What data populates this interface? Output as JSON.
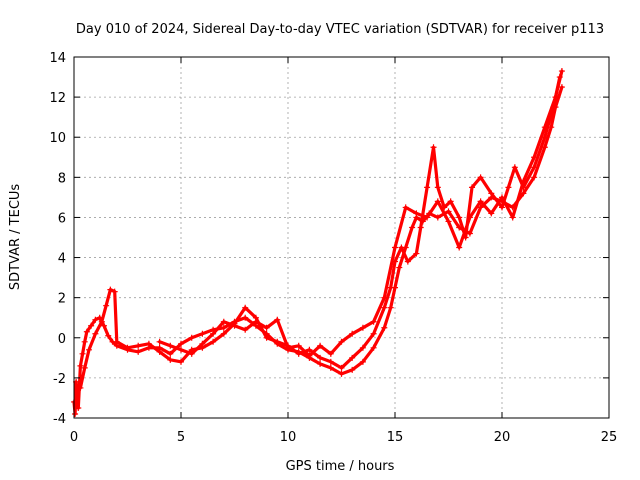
{
  "chart_data": {
    "type": "scatter",
    "title": "Day 010 of 2024, Sidereal Day-to-day VTEC variation (SDTVAR) for receiver p113",
    "xlabel": "GPS time / hours",
    "ylabel": "SDTVAR / TECUs",
    "xlim": [
      0,
      25
    ],
    "ylim": [
      -4,
      14
    ],
    "xticks": [
      "0",
      "5",
      "10",
      "15",
      "20",
      "25"
    ],
    "yticks": [
      "-4",
      "-2",
      "0",
      "2",
      "4",
      "6",
      "8",
      "10",
      "12",
      "14"
    ],
    "grid": true,
    "marker": "+",
    "color": "#ff0000",
    "series": [
      {
        "values": [
          [
            0.0,
            -3.2
          ],
          [
            0.05,
            -3.8
          ],
          [
            0.1,
            -2.2
          ],
          [
            0.2,
            -3.5
          ],
          [
            0.3,
            -1.4
          ],
          [
            0.4,
            -0.8
          ],
          [
            0.5,
            -0.2
          ],
          [
            0.6,
            0.3
          ],
          [
            0.8,
            0.6
          ],
          [
            1.0,
            0.9
          ],
          [
            1.2,
            1.0
          ],
          [
            1.4,
            0.6
          ],
          [
            1.6,
            0.1
          ],
          [
            1.8,
            -0.2
          ],
          [
            2.0,
            -0.4
          ],
          [
            2.5,
            -0.6
          ],
          [
            3.0,
            -0.7
          ],
          [
            3.5,
            -0.5
          ],
          [
            4.0,
            -0.5
          ],
          [
            4.5,
            -0.8
          ],
          [
            5.0,
            -0.3
          ],
          [
            5.5,
            0.0
          ],
          [
            6.0,
            0.2
          ],
          [
            6.5,
            0.4
          ],
          [
            7.0,
            0.5
          ],
          [
            7.5,
            0.8
          ],
          [
            8.0,
            1.0
          ],
          [
            8.5,
            0.6
          ],
          [
            9.0,
            0.2
          ],
          [
            9.5,
            -0.3
          ],
          [
            10.0,
            -0.6
          ],
          [
            10.5,
            -0.7
          ],
          [
            11.0,
            -1.0
          ],
          [
            11.5,
            -1.3
          ],
          [
            12.0,
            -1.5
          ],
          [
            12.5,
            -1.8
          ],
          [
            13.0,
            -1.6
          ],
          [
            13.5,
            -1.2
          ],
          [
            14.0,
            -0.5
          ],
          [
            14.5,
            0.5
          ],
          [
            14.8,
            1.5
          ],
          [
            15.0,
            2.5
          ],
          [
            15.2,
            3.5
          ],
          [
            15.5,
            4.5
          ],
          [
            15.8,
            5.5
          ],
          [
            16.0,
            6.0
          ],
          [
            16.3,
            5.8
          ],
          [
            16.6,
            6.2
          ],
          [
            17.0,
            6.0
          ],
          [
            17.5,
            6.3
          ],
          [
            18.0,
            5.5
          ],
          [
            18.5,
            5.2
          ],
          [
            19.0,
            6.5
          ],
          [
            19.5,
            7.0
          ],
          [
            20.0,
            6.8
          ],
          [
            20.5,
            6.5
          ],
          [
            21.0,
            7.2
          ],
          [
            21.5,
            8.0
          ],
          [
            22.0,
            9.5
          ],
          [
            22.3,
            10.5
          ],
          [
            22.5,
            11.5
          ],
          [
            22.8,
            12.5
          ]
        ]
      },
      {
        "values": [
          [
            0.3,
            -2.5
          ],
          [
            0.5,
            -1.5
          ],
          [
            0.7,
            -0.6
          ],
          [
            1.0,
            0.2
          ],
          [
            1.3,
            0.8
          ],
          [
            1.5,
            1.6
          ],
          [
            1.7,
            2.4
          ],
          [
            1.9,
            2.3
          ],
          [
            2.0,
            -0.2
          ],
          [
            2.5,
            -0.5
          ],
          [
            3.0,
            -0.4
          ],
          [
            3.5,
            -0.3
          ],
          [
            4.0,
            -0.7
          ],
          [
            4.5,
            -1.1
          ],
          [
            5.0,
            -1.2
          ],
          [
            5.5,
            -0.6
          ],
          [
            6.0,
            -0.5
          ],
          [
            6.5,
            -0.2
          ],
          [
            7.0,
            0.2
          ],
          [
            7.5,
            0.7
          ],
          [
            8.0,
            1.5
          ],
          [
            8.5,
            1.0
          ],
          [
            9.0,
            0.0
          ],
          [
            9.5,
            -0.2
          ],
          [
            10.0,
            -0.4
          ],
          [
            10.5,
            -0.8
          ],
          [
            11.0,
            -0.6
          ],
          [
            11.5,
            -1.0
          ],
          [
            12.0,
            -1.2
          ],
          [
            12.5,
            -1.5
          ],
          [
            13.0,
            -1.0
          ],
          [
            13.5,
            -0.5
          ],
          [
            14.0,
            0.2
          ],
          [
            14.5,
            1.5
          ],
          [
            14.8,
            2.5
          ],
          [
            15.0,
            3.8
          ],
          [
            15.3,
            4.5
          ],
          [
            15.6,
            3.8
          ],
          [
            16.0,
            4.2
          ],
          [
            16.2,
            5.5
          ],
          [
            16.5,
            7.5
          ],
          [
            16.8,
            9.5
          ],
          [
            17.0,
            7.5
          ],
          [
            17.3,
            6.5
          ],
          [
            17.6,
            6.8
          ],
          [
            18.0,
            6.0
          ],
          [
            18.3,
            5.0
          ],
          [
            18.6,
            7.5
          ],
          [
            19.0,
            8.0
          ],
          [
            19.5,
            7.2
          ],
          [
            20.0,
            6.5
          ],
          [
            20.3,
            7.5
          ],
          [
            20.6,
            8.5
          ],
          [
            21.0,
            7.5
          ],
          [
            21.5,
            8.5
          ],
          [
            22.0,
            10.0
          ],
          [
            22.4,
            11.5
          ],
          [
            22.7,
            13.0
          ]
        ]
      },
      {
        "values": [
          [
            4.0,
            -0.2
          ],
          [
            4.5,
            -0.4
          ],
          [
            5.0,
            -0.6
          ],
          [
            5.5,
            -0.8
          ],
          [
            6.0,
            -0.3
          ],
          [
            6.5,
            0.2
          ],
          [
            7.0,
            0.8
          ],
          [
            7.5,
            0.6
          ],
          [
            8.0,
            0.4
          ],
          [
            8.5,
            0.8
          ],
          [
            9.0,
            0.5
          ],
          [
            9.5,
            0.9
          ],
          [
            10.0,
            -0.5
          ],
          [
            10.5,
            -0.4
          ],
          [
            11.0,
            -0.9
          ],
          [
            11.5,
            -0.4
          ],
          [
            12.0,
            -0.8
          ],
          [
            12.5,
            -0.2
          ],
          [
            13.0,
            0.2
          ],
          [
            13.5,
            0.5
          ],
          [
            14.0,
            0.8
          ],
          [
            14.5,
            2.0
          ],
          [
            15.0,
            4.5
          ],
          [
            15.5,
            6.5
          ],
          [
            16.0,
            6.2
          ],
          [
            16.5,
            6.0
          ],
          [
            17.0,
            6.8
          ],
          [
            17.5,
            5.8
          ],
          [
            18.0,
            4.5
          ],
          [
            18.5,
            6.0
          ],
          [
            19.0,
            6.8
          ],
          [
            19.5,
            6.2
          ],
          [
            20.0,
            7.0
          ],
          [
            20.5,
            6.0
          ],
          [
            21.0,
            7.8
          ],
          [
            21.5,
            9.0
          ],
          [
            22.0,
            10.5
          ],
          [
            22.5,
            12.0
          ],
          [
            22.8,
            13.3
          ]
        ]
      }
    ]
  }
}
